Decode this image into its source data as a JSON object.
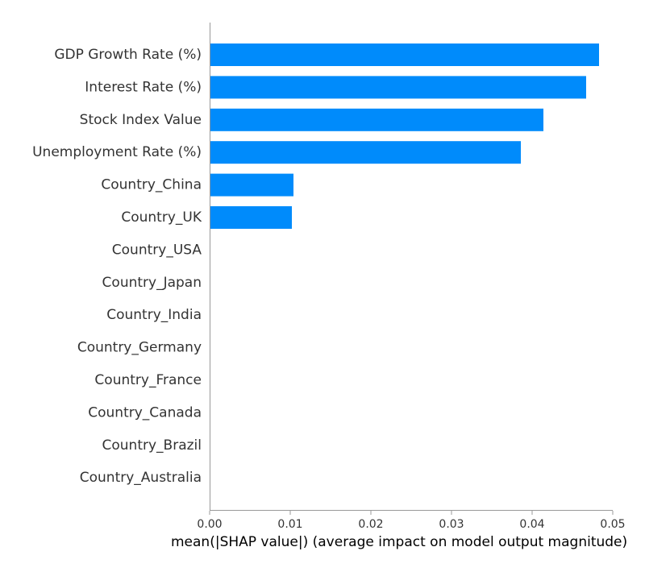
{
  "chart_data": {
    "type": "bar",
    "orientation": "horizontal",
    "title": "",
    "xlabel": "mean(|SHAP value|) (average impact on model output magnitude)",
    "ylabel": "",
    "xlim": [
      0,
      0.05
    ],
    "x_ticks": [
      "0.00",
      "0.01",
      "0.02",
      "0.03",
      "0.04",
      "0.05"
    ],
    "grid": false,
    "legend": "none",
    "bar_color": "#008bfb",
    "categories": [
      "GDP Growth Rate (%)",
      "Interest Rate (%)",
      "Stock Index Value",
      "Unemployment Rate (%)",
      "Country_China",
      "Country_UK",
      "Country_USA",
      "Country_Japan",
      "Country_India",
      "Country_Germany",
      "Country_France",
      "Country_Canada",
      "Country_Brazil",
      "Country_Australia"
    ],
    "values": [
      0.0483,
      0.0467,
      0.0414,
      0.0386,
      0.0104,
      0.0102,
      0,
      0,
      0,
      0,
      0,
      0,
      0,
      0
    ]
  }
}
